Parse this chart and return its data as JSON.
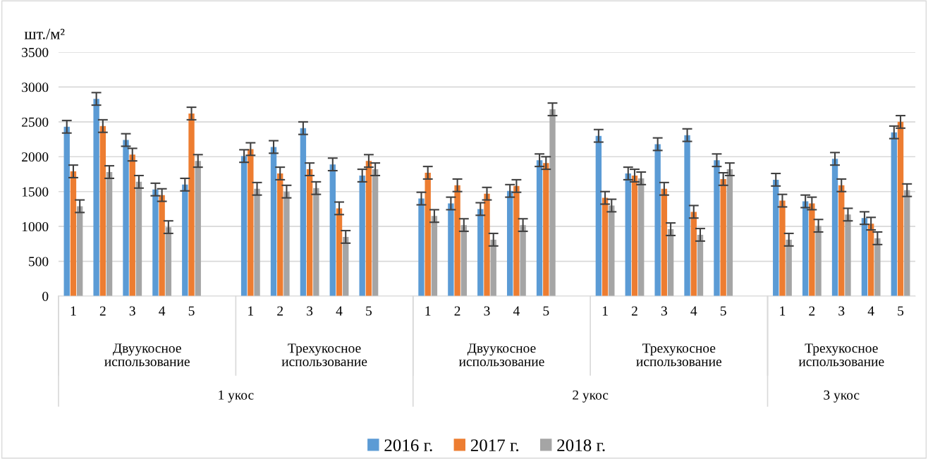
{
  "chart_data": {
    "type": "bar",
    "ylabel": "шт./м²",
    "categories": [
      "1",
      "2",
      "3",
      "4",
      "5",
      null,
      "1",
      "2",
      "3",
      "4",
      "5",
      null,
      "1",
      "2",
      "3",
      "4",
      "5",
      null,
      "1",
      "2",
      "3",
      "4",
      "5",
      null,
      "1",
      "2",
      "3",
      "4",
      "5"
    ],
    "series": [
      {
        "name": "2016 г.",
        "color": "#5b9bd5",
        "values": [
          2430,
          2830,
          2240,
          1530,
          1600,
          null,
          2010,
          2140,
          2410,
          1890,
          1730,
          null,
          1400,
          1330,
          1250,
          1510,
          1950,
          null,
          2300,
          1760,
          2180,
          2310,
          1950,
          null,
          1670,
          1360,
          1970,
          1120,
          2350
        ],
        "errors": [
          90,
          90,
          90,
          90,
          90,
          null,
          90,
          90,
          90,
          90,
          90,
          null,
          90,
          90,
          90,
          90,
          90,
          null,
          90,
          90,
          90,
          90,
          90,
          null,
          90,
          90,
          90,
          90,
          90
        ]
      },
      {
        "name": "2017 г.",
        "color": "#ed7d31",
        "values": [
          1790,
          2440,
          2030,
          1450,
          2620,
          null,
          2110,
          1760,
          1820,
          1260,
          1940,
          null,
          1770,
          1590,
          1470,
          1580,
          1910,
          null,
          1410,
          1730,
          1540,
          1210,
          1680,
          null,
          1370,
          1330,
          1590,
          1040,
          2500
        ],
        "errors": [
          90,
          90,
          90,
          90,
          90,
          null,
          90,
          90,
          90,
          90,
          90,
          null,
          90,
          90,
          90,
          90,
          90,
          null,
          90,
          90,
          90,
          90,
          90,
          null,
          90,
          90,
          90,
          90,
          90
        ]
      },
      {
        "name": "2018 г.",
        "color": "#a5a5a5",
        "values": [
          1290,
          1780,
          1640,
          990,
          1940,
          null,
          1540,
          1500,
          1550,
          850,
          1820,
          null,
          1150,
          1020,
          810,
          1020,
          2680,
          null,
          1300,
          1690,
          960,
          880,
          1820,
          null,
          810,
          1010,
          1170,
          830,
          1520
        ],
        "errors": [
          90,
          90,
          90,
          90,
          90,
          null,
          90,
          90,
          90,
          90,
          90,
          null,
          90,
          90,
          90,
          90,
          90,
          null,
          90,
          90,
          90,
          90,
          90,
          null,
          90,
          90,
          90,
          90,
          90
        ]
      }
    ],
    "annotations": [
      "Двуукосное использование",
      "Трехукосное использование",
      "Двуукосное использование",
      "Трехукосное использование",
      "Трехукосное использование",
      "1 укос",
      "2 укос",
      "3 укос"
    ],
    "ylim": [
      0,
      3500
    ],
    "yticks": [
      0,
      500,
      1000,
      1500,
      2000,
      2500,
      3000,
      3500
    ],
    "grid": "y",
    "legend": "bottom"
  }
}
